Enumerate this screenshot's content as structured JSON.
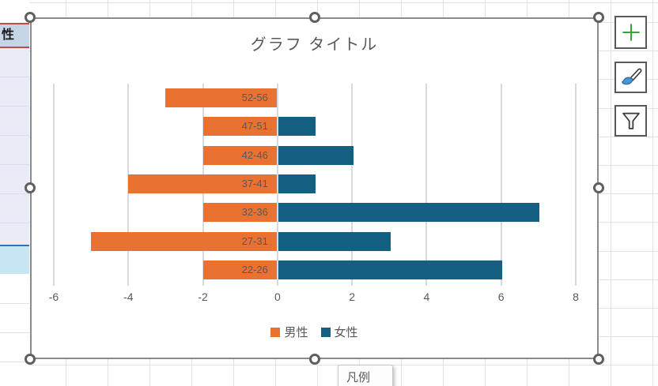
{
  "chart_data": {
    "type": "bar",
    "orientation": "horizontal",
    "title": "グラフ タイトル",
    "categories": [
      "52-56",
      "47-51",
      "42-46",
      "37-41",
      "32-36",
      "27-31",
      "22-26"
    ],
    "series": [
      {
        "name": "男性",
        "color": "#E97132",
        "values": [
          -3,
          -2,
          -2,
          -4,
          -2,
          -5,
          -2
        ]
      },
      {
        "name": "女性",
        "color": "#156082",
        "values": [
          0,
          1,
          2,
          1,
          7,
          3,
          6
        ]
      }
    ],
    "xlim": [
      -6,
      8
    ],
    "x_ticks": [
      -6,
      -4,
      -2,
      0,
      2,
      4,
      6,
      8
    ],
    "grid": true,
    "legend_position": "bottom",
    "category_labels_position": "inside-left-bars"
  },
  "tooltip": {
    "text": "凡例"
  },
  "worksheet": {
    "header_cell": "性"
  },
  "chart_buttons": [
    {
      "id": "chart-elements",
      "icon": "plus-icon"
    },
    {
      "id": "chart-styles",
      "icon": "paintbrush-icon"
    },
    {
      "id": "chart-filters",
      "icon": "funnel-icon"
    }
  ],
  "colors": {
    "male_series": "#E97132",
    "female_series": "#156082",
    "chart_gridline": "#D9D9D9",
    "axis_text": "#595959",
    "selection_border_red": "#BE4B48",
    "selection_border_blue": "#2E74B5",
    "range_fill_lavender": "#E9EBF7",
    "range_fill_cyan": "#C6E6F4",
    "header_cell_fill": "#C6D5E6",
    "plus_icon_green": "#3E9E3E",
    "brush_tip_blue": "#4A96D2"
  }
}
